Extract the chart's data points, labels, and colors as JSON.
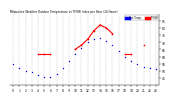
{
  "title": "Milwaukee Weather Outdoor Temperature vs THSW Index per Hour (24 Hours)",
  "hours": [
    0,
    1,
    2,
    3,
    4,
    5,
    6,
    7,
    8,
    9,
    10,
    11,
    12,
    13,
    14,
    15,
    16,
    17,
    18,
    19,
    20,
    21,
    22,
    23
  ],
  "outdoor_temp": [
    55,
    52,
    50,
    49,
    47,
    46,
    46,
    48,
    52,
    57,
    62,
    66,
    70,
    72,
    73,
    71,
    68,
    64,
    60,
    57,
    55,
    53,
    52,
    51
  ],
  "thsw_index": [
    null,
    null,
    null,
    null,
    62,
    62,
    62,
    null,
    null,
    null,
    65,
    68,
    72,
    78,
    82,
    80,
    76,
    null,
    62,
    62,
    null,
    68,
    null,
    null
  ],
  "temp_color": "#0000ff",
  "thsw_color": "#ff0000",
  "bg_color": "#ffffff",
  "grid_color": "#888888",
  "ylim": [
    40,
    90
  ],
  "ytick_vals": [
    45,
    50,
    55,
    60,
    65,
    70,
    75,
    80,
    85
  ],
  "ytick_labels": [
    "45",
    "50",
    "55",
    "60",
    "65",
    "70",
    "75",
    "80",
    "85"
  ],
  "legend_temp_label": "Out Temp",
  "legend_thsw_label": "THSW",
  "legend_temp_color": "#0000ff",
  "legend_thsw_color": "#ff0000"
}
